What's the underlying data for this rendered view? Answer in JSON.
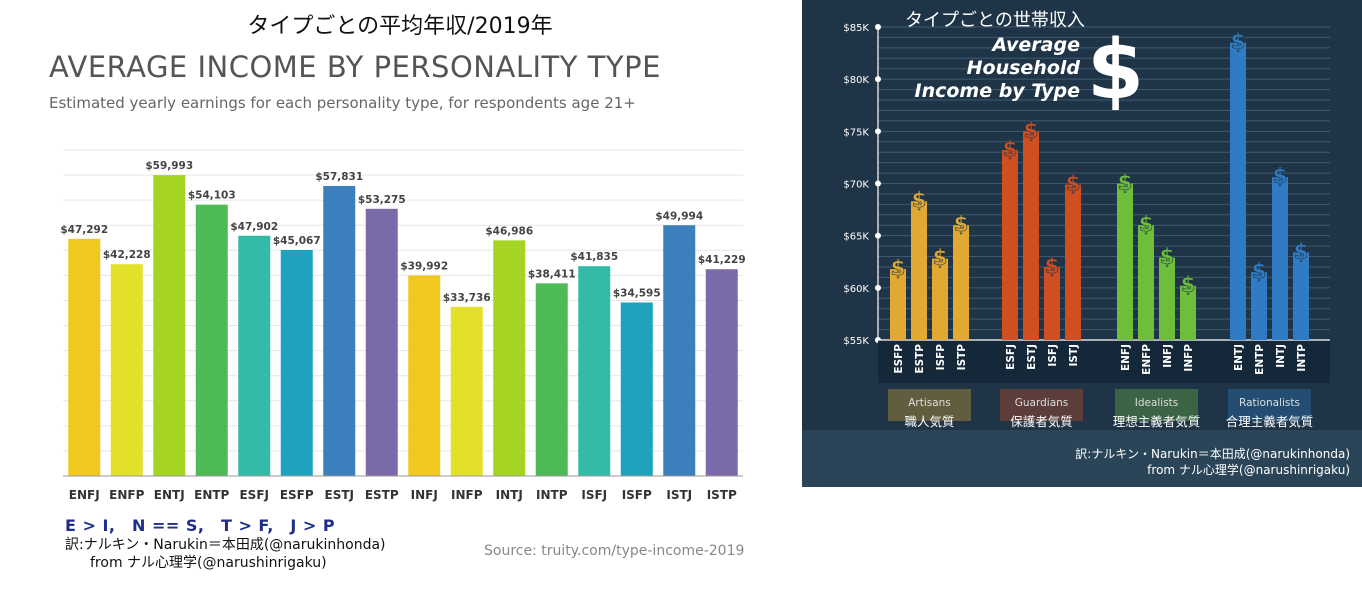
{
  "left": {
    "title_jp": "タイプごとの平均年収/2019年",
    "title": "AVERAGE INCOME BY PERSONALITY TYPE",
    "subtitle": "Estimated yearly earnings for each personality type, for respondents age 21+",
    "legend_line": "E > I,　N == S,　T > F,　J > P",
    "credit_line1": "訳:ナルキン・Narukin＝本田成(@narukinhonda)",
    "credit_line2": "from ナル心理学(@narushinrigaku)",
    "source": "Source: truity.com/type-income-2019"
  },
  "right": {
    "title_jp": "タイプごとの世帯収入",
    "title_line1": "Average",
    "title_line2": "Household",
    "title_line3": "Income by Type",
    "dollar_icon": "dollar-icon",
    "credit_line1": "訳:ナルキン・Narukin＝本田成(@narukinhonda)",
    "credit_line2": "from ナル心理学(@narushinrigaku)"
  },
  "chart_data": [
    {
      "type": "bar",
      "categories": [
        "ENFJ",
        "ENFP",
        "ENTJ",
        "ENTP",
        "ESFJ",
        "ESFP",
        "ESTJ",
        "ESTP",
        "INFJ",
        "INFP",
        "INTJ",
        "INTP",
        "ISFJ",
        "ISFP",
        "ISTJ",
        "ISTP"
      ],
      "values": [
        47292,
        42228,
        59993,
        54103,
        47902,
        45067,
        57831,
        53275,
        39992,
        33736,
        46986,
        38411,
        41835,
        34595,
        49994,
        41229
      ],
      "data_labels": [
        "$47,292",
        "$42,228",
        "$59,993",
        "$54,103",
        "$47,902",
        "$45,067",
        "$57,831",
        "$53,275",
        "$39,992",
        "$33,736",
        "$46,986",
        "$38,411",
        "$41,835",
        "$34,595",
        "$49,994",
        "$41,229"
      ],
      "colors": [
        "#f0c820",
        "#e3e02a",
        "#a6d422",
        "#4eba55",
        "#34bba8",
        "#1ea3bf",
        "#3b7fbd",
        "#7a6aa8",
        "#f0c820",
        "#e3e02a",
        "#a6d422",
        "#4eba55",
        "#34bba8",
        "#1ea3bf",
        "#3b7fbd",
        "#7a6aa8"
      ],
      "title": "AVERAGE INCOME BY PERSONALITY TYPE",
      "subtitle": "Estimated yearly earnings for each personality type, for respondents age 21+",
      "ylim": [
        0,
        65000
      ],
      "grid": true
    },
    {
      "type": "bar",
      "groups": [
        {
          "name": "Artisans",
          "name_jp": "職人気質",
          "color": "#e2a932",
          "categories": [
            "ESFP",
            "ESTP",
            "ISFP",
            "ISTP"
          ],
          "values": [
            61800,
            68300,
            62800,
            66000
          ]
        },
        {
          "name": "Guardians",
          "name_jp": "保護者気質",
          "color": "#cf4e22",
          "categories": [
            "ESFJ",
            "ESTJ",
            "ISFJ",
            "ISTJ"
          ],
          "values": [
            73200,
            75000,
            62000,
            69900
          ]
        },
        {
          "name": "Idealists",
          "name_jp": "理想主義者気質",
          "color": "#6ebe3c",
          "categories": [
            "ENFJ",
            "ENFP",
            "INFJ",
            "INFP"
          ],
          "values": [
            70000,
            66000,
            62900,
            60200
          ]
        },
        {
          "name": "Rationalists",
          "name_jp": "合理主義者気質",
          "color": "#2f7cc4",
          "categories": [
            "ENTJ",
            "ENTP",
            "INTJ",
            "INTP"
          ],
          "values": [
            83500,
            61500,
            70600,
            63400
          ]
        }
      ],
      "title": "Average Household Income by Type",
      "y_ticks": [
        "$55K",
        "$60K",
        "$65K",
        "$70K",
        "$75K",
        "$80K",
        "$85K"
      ],
      "ylim": [
        55000,
        85000
      ],
      "grid": true
    }
  ]
}
